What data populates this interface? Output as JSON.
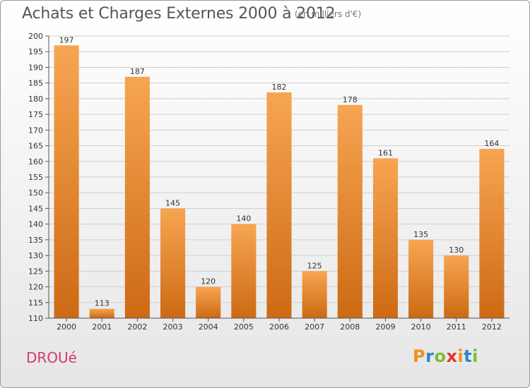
{
  "header": {
    "title": "Achats et Charges Externes 2000 à 2012",
    "unit": "(en milliers d'€)"
  },
  "footer": {
    "place": "DROUé",
    "logo": [
      "P",
      "r",
      "o",
      "x",
      "i",
      "t",
      "i"
    ],
    "logo_colors": [
      "#f39019",
      "#2b86c8",
      "#7cbf2f",
      "#e6322e",
      "#f39019",
      "#2b86c8",
      "#7cbf2f"
    ]
  },
  "colors": {
    "bar_light": "#f7a552",
    "bar_dark": "#cd6a14",
    "axis": "#555555",
    "grid": "#cfcfcf"
  },
  "chart_data": {
    "type": "bar",
    "categories": [
      "2000",
      "2001",
      "2002",
      "2003",
      "2004",
      "2005",
      "2006",
      "2007",
      "2008",
      "2009",
      "2010",
      "2011",
      "2012"
    ],
    "values": [
      197,
      113,
      187,
      145,
      120,
      140,
      182,
      125,
      178,
      161,
      135,
      130,
      164
    ],
    "ylim": [
      110,
      200
    ],
    "yticks": [
      110,
      115,
      120,
      125,
      130,
      135,
      140,
      145,
      150,
      155,
      160,
      165,
      170,
      175,
      180,
      185,
      190,
      195,
      200
    ],
    "grid": true
  }
}
